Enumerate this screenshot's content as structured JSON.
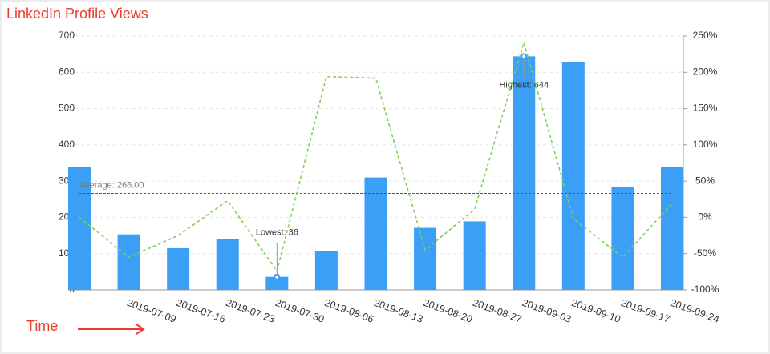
{
  "chart_data": {
    "type": "bar",
    "title": "LinkedIn Profile Views",
    "x_label": "Time",
    "categories": [
      null,
      "2019-07-09",
      "2019-07-16",
      "2019-07-23",
      "2019-07-30",
      "2019-08-06",
      "2019-08-13",
      "2019-08-20",
      "2019-08-27",
      "2019-09-03",
      "2019-09-10",
      "2019-09-17",
      "2019-09-24"
    ],
    "series": [
      {
        "type": "bar",
        "color": "#3a9ff5",
        "values": [
          340,
          153,
          115,
          141,
          36,
          106,
          310,
          171,
          189,
          644,
          628,
          285,
          338
        ],
        "min_label": "Lowest: 36",
        "max_label": "Highest: 644",
        "average": 266,
        "average_label": "Average: 266.00"
      },
      {
        "type": "line",
        "axis": "y2",
        "color": "#7ed05a",
        "values": [
          0,
          -55,
          -25,
          23,
          -74,
          194,
          192,
          -45,
          11,
          241,
          -2,
          -55,
          19
        ]
      }
    ],
    "ylim": [
      0,
      700
    ],
    "yticks": [
      0,
      100,
      200,
      300,
      400,
      500,
      600,
      700
    ],
    "y2lim": [
      -100,
      250
    ],
    "y2ticks": [
      {
        "value": -100,
        "label": "-100%"
      },
      {
        "value": -50,
        "label": "-50%"
      },
      {
        "value": 0,
        "label": "0%"
      },
      {
        "value": 50,
        "label": "50%"
      },
      {
        "value": 100,
        "label": "100%"
      },
      {
        "value": 150,
        "label": "150%"
      },
      {
        "value": 200,
        "label": "200%"
      },
      {
        "value": 250,
        "label": "250%"
      }
    ],
    "grid": true
  }
}
